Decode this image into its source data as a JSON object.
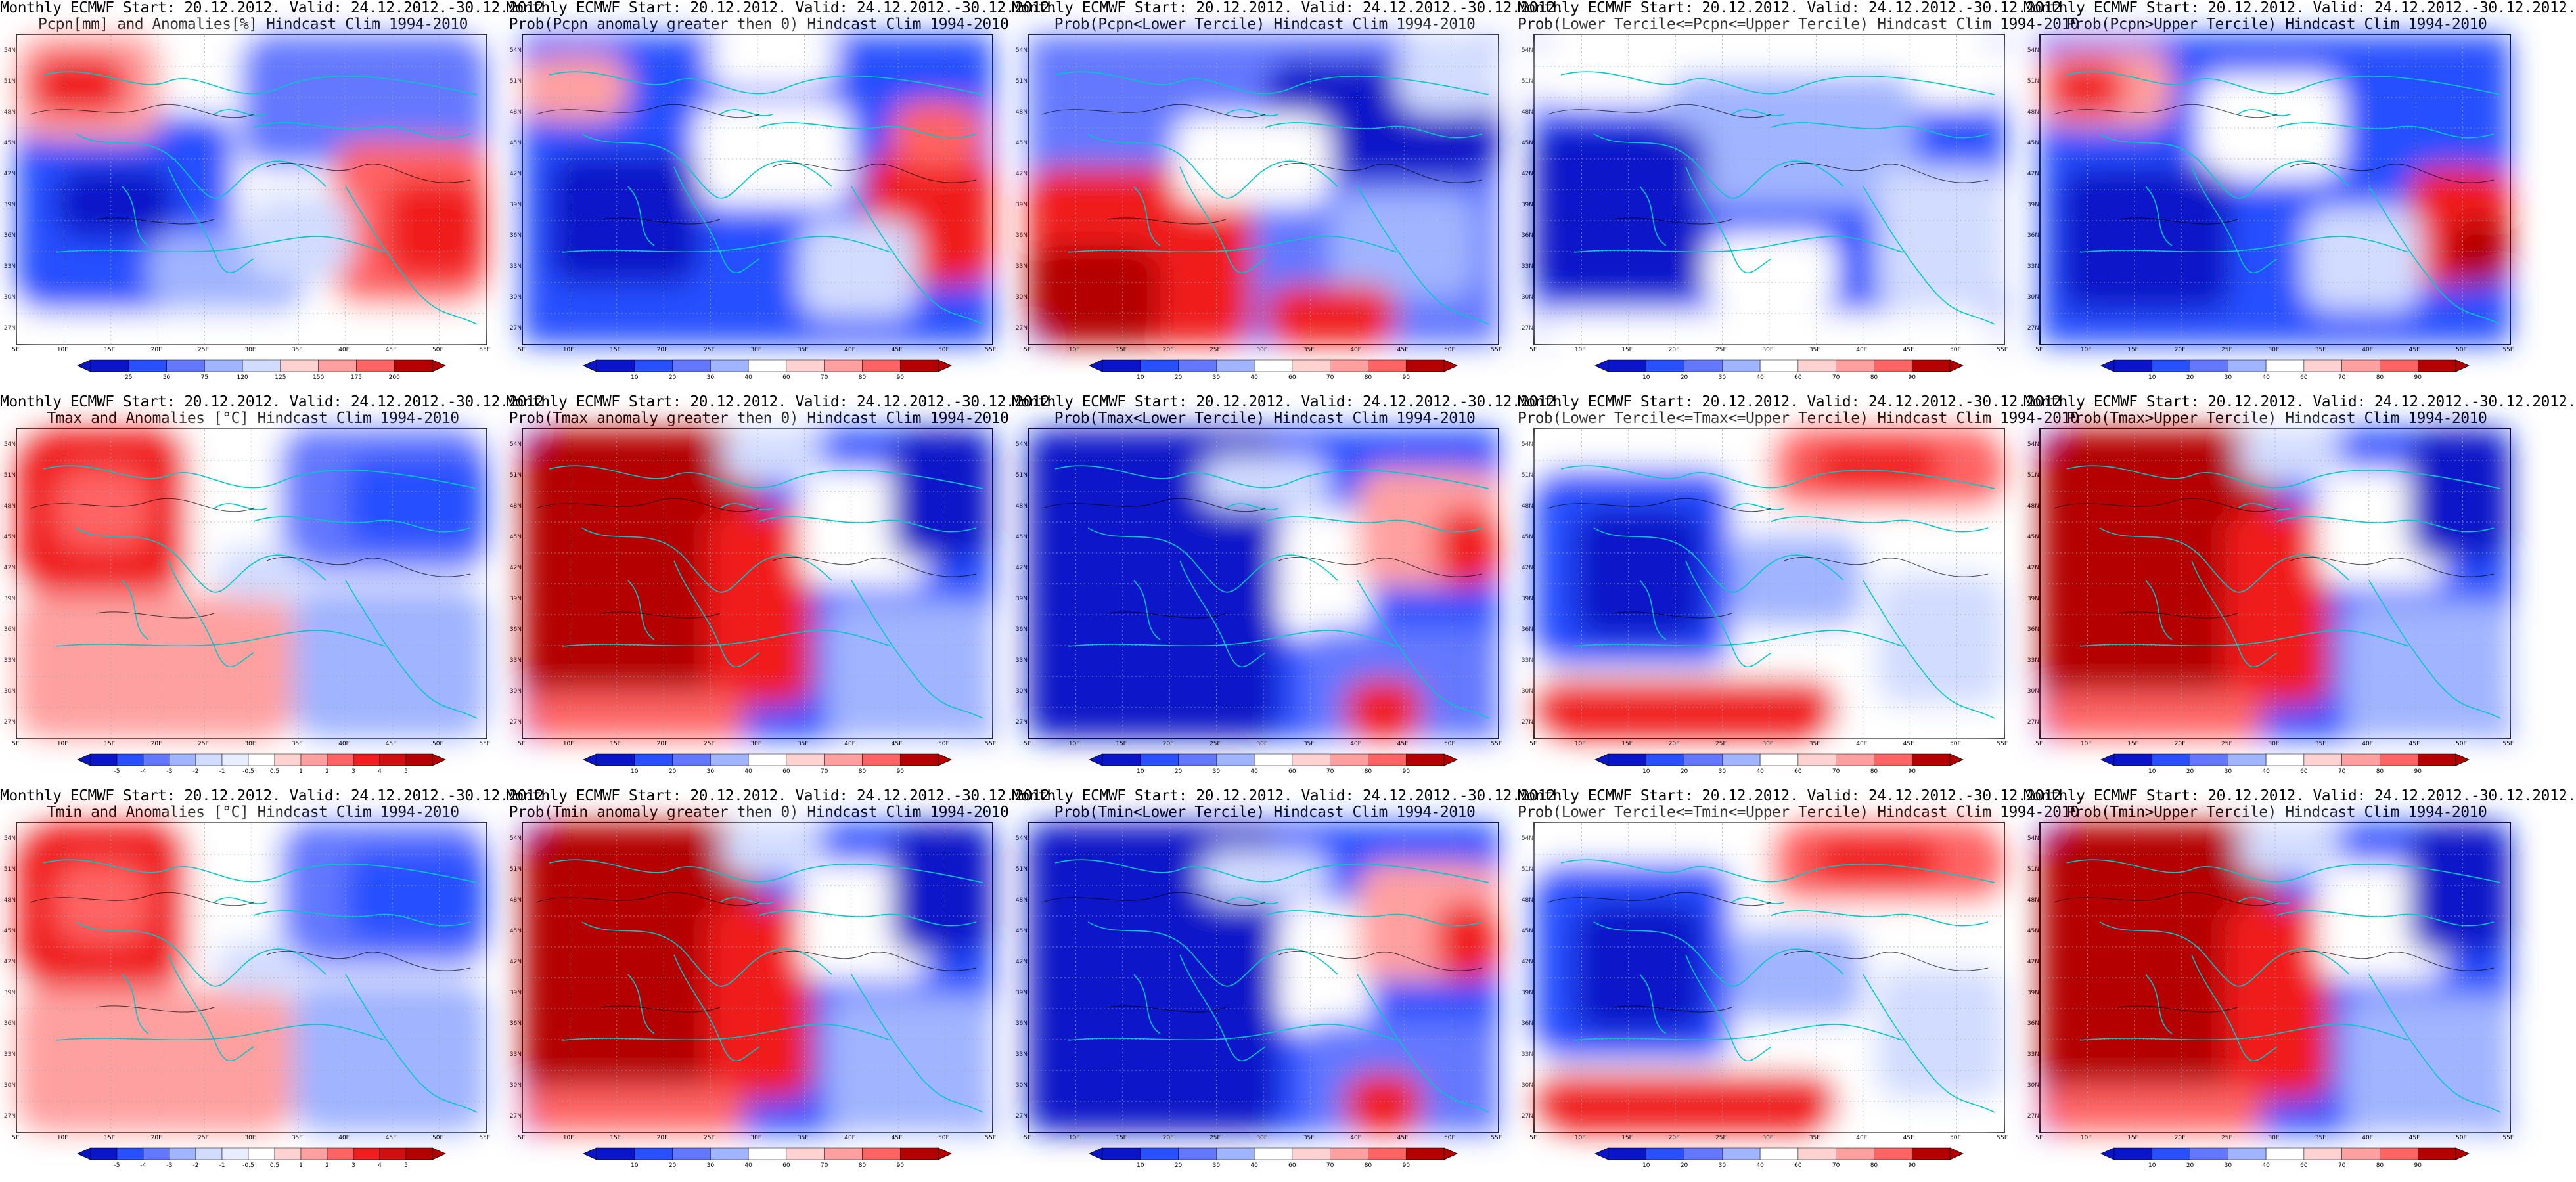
{
  "colors": {
    "deep_blue": "#0a14c8",
    "blue": "#2850ff",
    "mid_blue": "#6478ff",
    "light_blue": "#a0b4ff",
    "pale_blue": "#d2dcff",
    "white": "#ffffff",
    "pale_red": "#ffd2d2",
    "light_red": "#ffa0a0",
    "mid_red": "#ff6464",
    "red": "#f01e1e",
    "dark_red": "#b40000",
    "coast": "#00c8c8",
    "contour": "#000000"
  },
  "latitude_labels": [
    "54N",
    "51N",
    "48N",
    "45N",
    "42N",
    "39N",
    "36N",
    "33N",
    "30N",
    "27N"
  ],
  "longitude_labels": [
    "5E",
    "10E",
    "15E",
    "20E",
    "25E",
    "30E",
    "35E",
    "40E",
    "45E",
    "50E",
    "55E"
  ],
  "colorbars": {
    "pcpn_anom": [
      "25",
      "50",
      "75",
      "120",
      "125",
      "150",
      "175",
      "200"
    ],
    "prob": [
      "10",
      "20",
      "30",
      "40",
      "60",
      "70",
      "80",
      "90"
    ],
    "temp_anom": [
      "-5",
      "-4",
      "-3",
      "-2",
      "-1",
      "-0.5",
      "0.5",
      "1",
      "2",
      "3",
      "4",
      "5"
    ]
  },
  "panels": [
    {
      "title1": "Monthly ECMWF Start: 20.12.2012. Valid: 24.12.2012.-30.12.2012.",
      "title2": "Pcpn[mm] and Anomalies[%] Hindcast Clim 1994-2010",
      "cbar": "pcpn_anom",
      "pattern": "pa"
    },
    {
      "title1": "Monthly ECMWF Start: 20.12.2012. Valid: 24.12.2012.-30.12.2012.",
      "title2": "Prob(Pcpn anomaly greater then 0) Hindcast Clim 1994-2010",
      "cbar": "prob",
      "pattern": "pb"
    },
    {
      "title1": "Monthly ECMWF Start: 20.12.2012. Valid: 24.12.2012.-30.12.2012.",
      "title2": "Prob(Pcpn<Lower Tercile) Hindcast Clim 1994-2010",
      "cbar": "prob",
      "pattern": "pc"
    },
    {
      "title1": "Monthly ECMWF Start: 20.12.2012. Valid: 24.12.2012.-30.12.2012.",
      "title2": "Prob(Lower Tercile<=Pcpn<=Upper Tercile) Hindcast Clim 1994-2010",
      "cbar": "prob",
      "pattern": "pd"
    },
    {
      "title1": "Monthly ECMWF Start: 20.12.2012. Valid: 24.12.2012.-30.12.2012.",
      "title2": "Prob(Pcpn>Upper Tercile) Hindcast Clim 1994-2010",
      "cbar": "prob",
      "pattern": "pe"
    },
    {
      "title1": "Monthly ECMWF Start: 20.12.2012. Valid: 24.12.2012.-30.12.2012.",
      "title2": "Tmax and Anomalies [°C] Hindcast Clim 1994-2010",
      "cbar": "temp_anom",
      "pattern": "ta"
    },
    {
      "title1": "Monthly ECMWF Start: 20.12.2012. Valid: 24.12.2012.-30.12.2012.",
      "title2": "Prob(Tmax anomaly greater then 0) Hindcast Clim 1994-2010",
      "cbar": "prob",
      "pattern": "tb"
    },
    {
      "title1": "Monthly ECMWF Start: 20.12.2012. Valid: 24.12.2012.-30.12.2012.",
      "title2": "Prob(Tmax<Lower Tercile) Hindcast Clim 1994-2010",
      "cbar": "prob",
      "pattern": "tc"
    },
    {
      "title1": "Monthly ECMWF Start: 20.12.2012. Valid: 24.12.2012.-30.12.2012.",
      "title2": "Prob(Lower Tercile<=Tmax<=Upper Tercile) Hindcast Clim 1994-2010",
      "cbar": "prob",
      "pattern": "td"
    },
    {
      "title1": "Monthly ECMWF Start: 20.12.2012. Valid: 24.12.2012.-30.12.2012.",
      "title2": "Prob(Tmax>Upper Tercile) Hindcast Clim 1994-2010",
      "cbar": "prob",
      "pattern": "tb"
    },
    {
      "title1": "Monthly ECMWF Start: 20.12.2012. Valid: 24.12.2012.-30.12.2012.",
      "title2": "Tmin and Anomalies [°C] Hindcast Clim 1994-2010",
      "cbar": "temp_anom",
      "pattern": "ta"
    },
    {
      "title1": "Monthly ECMWF Start: 20.12.2012. Valid: 24.12.2012.-30.12.2012.",
      "title2": "Prob(Tmin anomaly greater then 0) Hindcast Clim 1994-2010",
      "cbar": "prob",
      "pattern": "tb"
    },
    {
      "title1": "Monthly ECMWF Start: 20.12.2012. Valid: 24.12.2012.-30.12.2012.",
      "title2": "Prob(Tmin<Lower Tercile) Hindcast Clim 1994-2010",
      "cbar": "prob",
      "pattern": "tc"
    },
    {
      "title1": "Monthly ECMWF Start: 20.12.2012. Valid: 24.12.2012.-30.12.2012.",
      "title2": "Prob(Lower Tercile<=Tmin<=Upper Tercile) Hindcast Clim 1994-2010",
      "cbar": "prob",
      "pattern": "td"
    },
    {
      "title1": "Monthly ECMWF Start: 20.12.2012. Valid: 24.12.2012.-30.12.2012.",
      "title2": "Prob(Tmin>Upper Tercile) Hindcast Clim 1994-2010",
      "cbar": "prob",
      "pattern": "tb"
    }
  ]
}
